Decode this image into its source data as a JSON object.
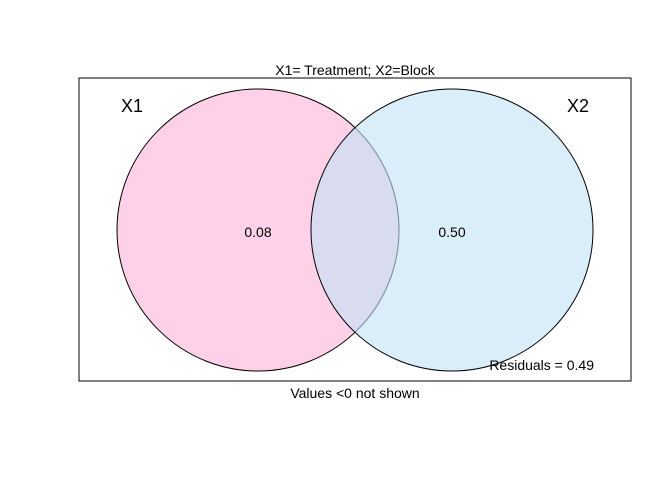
{
  "title": "X1= Treatment; X2=Block",
  "sets": [
    {
      "name": "X1",
      "fill": "#ffb3d9",
      "opacity": 0.6
    },
    {
      "name": "X2",
      "fill": "#c0e2f5",
      "opacity": 0.6
    }
  ],
  "values": {
    "x1_only": "0.08",
    "x2_only": "0.50"
  },
  "residuals": "Residuals = 0.49",
  "footer": "Values <0 not shown",
  "colors": {
    "stroke": "#000000",
    "background": "#ffffff"
  }
}
